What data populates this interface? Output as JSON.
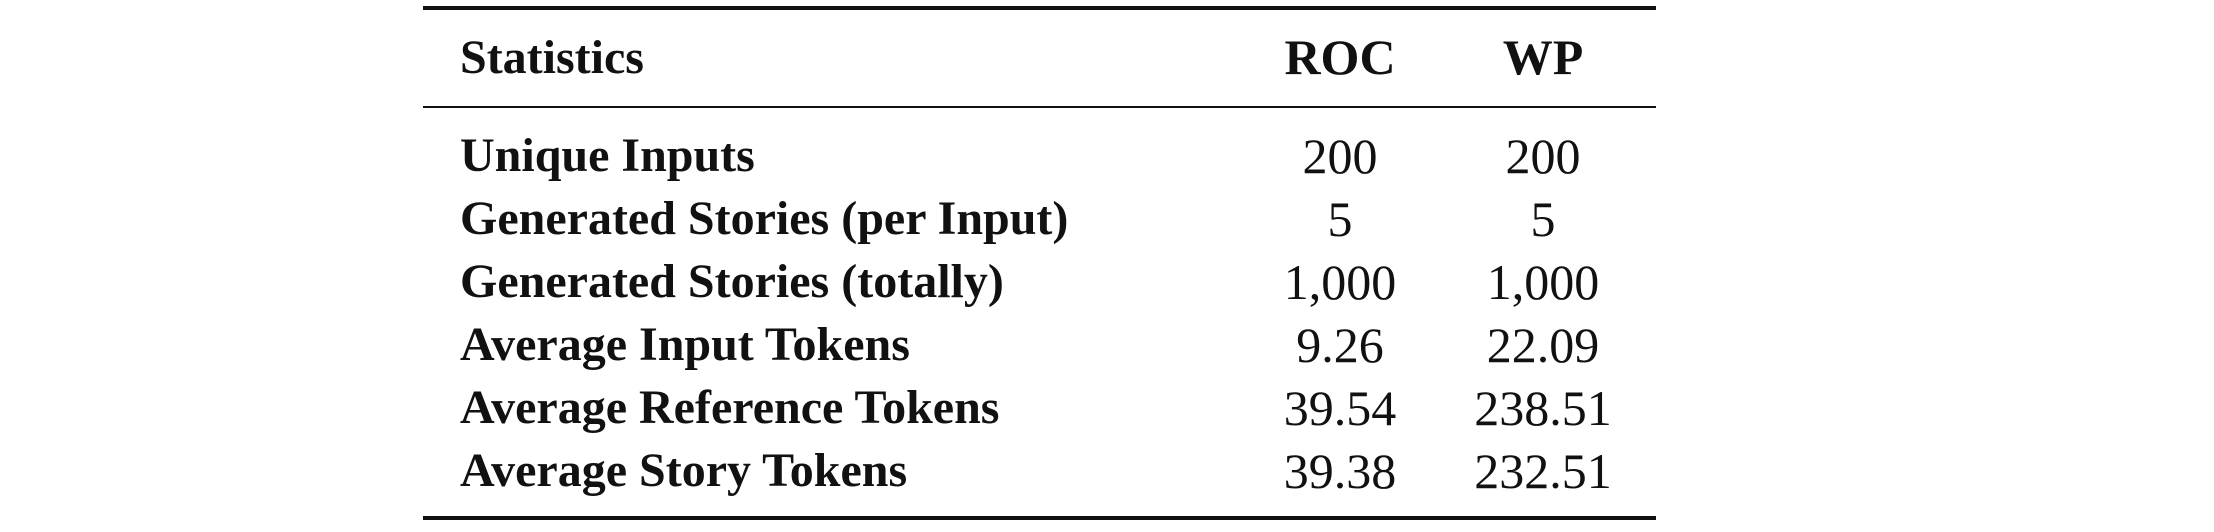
{
  "table": {
    "headers": {
      "statistics": "Statistics",
      "roc": "ROC",
      "wp": "WP"
    },
    "rows": [
      {
        "label": "Unique Inputs",
        "roc": "200",
        "wp": "200"
      },
      {
        "label": "Generated Stories (per Input)",
        "roc": "5",
        "wp": "5"
      },
      {
        "label": "Generated Stories (totally)",
        "roc": "1,000",
        "wp": "1,000"
      },
      {
        "label": "Average Input Tokens",
        "roc": "9.26",
        "wp": "22.09"
      },
      {
        "label": "Average Reference Tokens",
        "roc": "39.54",
        "wp": "238.51"
      },
      {
        "label": "Average Story Tokens",
        "roc": "39.38",
        "wp": "232.51"
      }
    ]
  }
}
